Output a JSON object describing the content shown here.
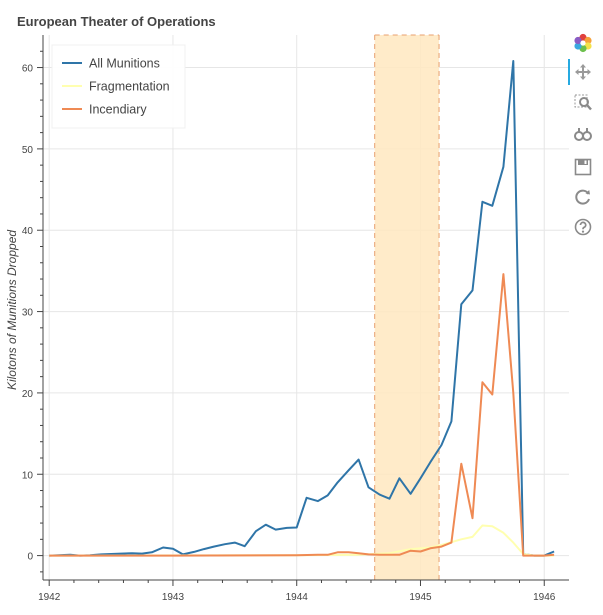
{
  "chart_data": {
    "type": "line",
    "title": "European Theater of Operations",
    "xlabel": "",
    "ylabel": "Kilotons of Munitions Dropped",
    "xlim": [
      1941.95,
      1946.2
    ],
    "ylim": [
      -3,
      64
    ],
    "x_ticks": [
      1942,
      1943,
      1944,
      1945,
      1946
    ],
    "y_ticks": [
      0,
      10,
      20,
      30,
      40,
      50,
      60
    ],
    "grid": true,
    "legend_position": "top-left",
    "highlight_band": {
      "x_start": 1944.63,
      "x_end": 1945.15,
      "color": "#ffe8c0",
      "edge_color": "#e8a070"
    },
    "series": [
      {
        "name": "All Munitions",
        "color": "#2f75a8",
        "points": [
          [
            1942.0,
            0
          ],
          [
            1942.17,
            0.1
          ],
          [
            1942.25,
            0.0
          ],
          [
            1942.33,
            0.05
          ],
          [
            1942.42,
            0.15
          ],
          [
            1942.5,
            0.2
          ],
          [
            1942.58,
            0.25
          ],
          [
            1942.67,
            0.3
          ],
          [
            1942.75,
            0.25
          ],
          [
            1942.83,
            0.4
          ],
          [
            1942.92,
            1.0
          ],
          [
            1943.0,
            0.85
          ],
          [
            1943.08,
            0.15
          ],
          [
            1943.17,
            0.45
          ],
          [
            1943.25,
            0.8
          ],
          [
            1943.33,
            1.1
          ],
          [
            1943.42,
            1.4
          ],
          [
            1943.5,
            1.6
          ],
          [
            1943.58,
            1.15
          ],
          [
            1943.67,
            3.0
          ],
          [
            1943.75,
            3.8
          ],
          [
            1943.83,
            3.2
          ],
          [
            1943.92,
            3.4
          ],
          [
            1944.0,
            3.45
          ],
          [
            1944.08,
            7.1
          ],
          [
            1944.17,
            6.7
          ],
          [
            1944.25,
            7.4
          ],
          [
            1944.33,
            9.0
          ],
          [
            1944.42,
            10.5
          ],
          [
            1944.5,
            11.8
          ],
          [
            1944.58,
            8.4
          ],
          [
            1944.67,
            7.5
          ],
          [
            1944.75,
            7.0
          ],
          [
            1944.83,
            9.5
          ],
          [
            1944.92,
            7.6
          ],
          [
            1945.0,
            9.5
          ],
          [
            1945.08,
            11.5
          ],
          [
            1945.17,
            13.6
          ],
          [
            1945.25,
            16.5
          ],
          [
            1945.33,
            30.9
          ],
          [
            1945.42,
            32.6
          ],
          [
            1945.5,
            43.5
          ],
          [
            1945.58,
            43.0
          ],
          [
            1945.67,
            47.8
          ],
          [
            1945.75,
            60.8
          ],
          [
            1945.83,
            0.2
          ],
          [
            1945.92,
            0.0
          ],
          [
            1946.0,
            0.0
          ],
          [
            1946.08,
            0.5
          ]
        ]
      },
      {
        "name": "Fragmentation",
        "color": "#ffffb0",
        "points": [
          [
            1942.0,
            0
          ],
          [
            1944.0,
            0.05
          ],
          [
            1944.5,
            0.1
          ],
          [
            1944.75,
            0.3
          ],
          [
            1944.92,
            0.8
          ],
          [
            1945.08,
            1.0
          ],
          [
            1945.17,
            1.3
          ],
          [
            1945.33,
            2.0
          ],
          [
            1945.42,
            2.3
          ],
          [
            1945.5,
            3.7
          ],
          [
            1945.58,
            3.6
          ],
          [
            1945.67,
            2.8
          ],
          [
            1945.75,
            1.6
          ],
          [
            1945.83,
            0.2
          ],
          [
            1945.92,
            0.0
          ],
          [
            1946.0,
            0.0
          ],
          [
            1946.08,
            0.0
          ]
        ]
      },
      {
        "name": "Incendiary",
        "color": "#ef8a54",
        "points": [
          [
            1942.0,
            0
          ],
          [
            1943.0,
            0.0
          ],
          [
            1944.0,
            0.05
          ],
          [
            1944.17,
            0.1
          ],
          [
            1944.25,
            0.1
          ],
          [
            1944.33,
            0.4
          ],
          [
            1944.42,
            0.4
          ],
          [
            1944.5,
            0.3
          ],
          [
            1944.58,
            0.15
          ],
          [
            1944.67,
            0.1
          ],
          [
            1944.75,
            0.1
          ],
          [
            1944.83,
            0.1
          ],
          [
            1944.92,
            0.6
          ],
          [
            1945.0,
            0.5
          ],
          [
            1945.08,
            0.9
          ],
          [
            1945.17,
            1.1
          ],
          [
            1945.25,
            1.6
          ],
          [
            1945.33,
            11.3
          ],
          [
            1945.42,
            4.6
          ],
          [
            1945.5,
            21.3
          ],
          [
            1945.58,
            19.8
          ],
          [
            1945.67,
            34.6
          ],
          [
            1945.75,
            20.0
          ],
          [
            1945.83,
            0.0
          ],
          [
            1945.92,
            0.0
          ],
          [
            1946.0,
            0.0
          ],
          [
            1946.08,
            0.1
          ]
        ]
      }
    ]
  },
  "toolbar": {
    "tools": [
      {
        "name": "bokeh-logo-icon"
      },
      {
        "name": "pan-tool-icon"
      },
      {
        "name": "box-zoom-tool-icon"
      },
      {
        "name": "wheel-zoom-tool-icon"
      },
      {
        "name": "save-tool-icon"
      },
      {
        "name": "reset-tool-icon"
      },
      {
        "name": "help-tool-icon"
      }
    ],
    "accent_color": "#26aae1"
  }
}
